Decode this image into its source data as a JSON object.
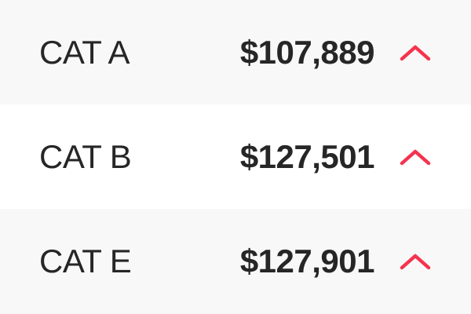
{
  "rows": [
    {
      "label": "CAT A",
      "value": "$107,889",
      "trend_icon": "chevron-up-icon",
      "alt": true
    },
    {
      "label": "CAT B",
      "value": "$127,501",
      "trend_icon": "chevron-up-icon",
      "alt": false
    },
    {
      "label": "CAT E",
      "value": "$127,901",
      "trend_icon": "chevron-up-icon",
      "alt": true
    }
  ],
  "colors": {
    "trend_up": "#f5334f",
    "text": "#262626",
    "alt_row": "#f8f8f8"
  }
}
